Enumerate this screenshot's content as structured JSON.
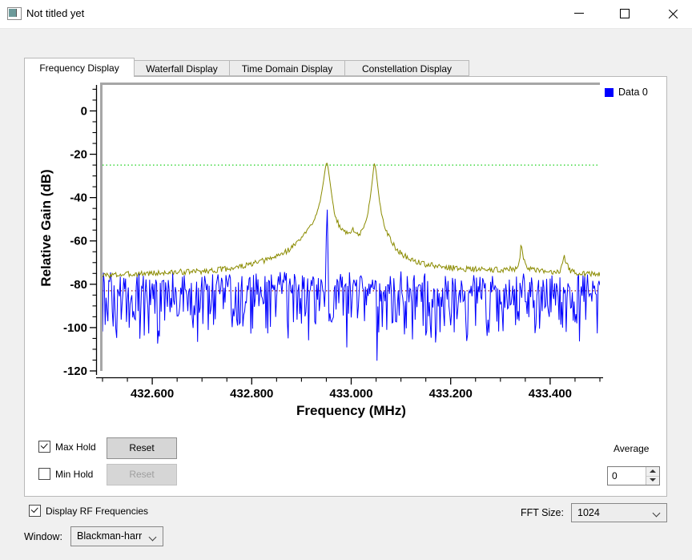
{
  "window": {
    "title": "Not titled yet"
  },
  "tabs": [
    {
      "label": "Frequency Display",
      "selected": true
    },
    {
      "label": "Waterfall Display",
      "selected": false
    },
    {
      "label": "Time Domain Display",
      "selected": false
    },
    {
      "label": "Constellation Display",
      "selected": false
    }
  ],
  "chart_data": {
    "type": "line",
    "title": "",
    "xlabel": "Frequency (MHz)",
    "ylabel": "Relative Gain (dB)",
    "xlim": [
      432.5,
      433.5
    ],
    "ylim": [
      -120,
      12
    ],
    "grid": false,
    "legend_position": "top-right-outside",
    "x_axis": {
      "major": [
        {
          "v": 432.6,
          "label": "432.600"
        },
        {
          "v": 432.8,
          "label": "432.800"
        },
        {
          "v": 433.0,
          "label": "433.000"
        },
        {
          "v": 433.2,
          "label": "433.200"
        },
        {
          "v": 433.4,
          "label": "433.400"
        }
      ],
      "minor": [
        432.5,
        432.55,
        432.65,
        432.7,
        432.75,
        432.85,
        432.9,
        432.95,
        433.05,
        433.1,
        433.15,
        433.25,
        433.3,
        433.35,
        433.45,
        433.5
      ]
    },
    "y_axis": {
      "major": [
        {
          "v": 0,
          "label": "0"
        },
        {
          "v": -20,
          "label": "-20"
        },
        {
          "v": -40,
          "label": "-40"
        },
        {
          "v": -60,
          "label": "-60"
        },
        {
          "v": -80,
          "label": "-80"
        },
        {
          "v": -100,
          "label": "-100"
        },
        {
          "v": -120,
          "label": "-120"
        }
      ],
      "minor": [
        10,
        5,
        -5,
        -10,
        -15,
        -25,
        -30,
        -35,
        -45,
        -50,
        -55,
        -65,
        -70,
        -75,
        -85,
        -90,
        -95,
        -105,
        -110,
        -115
      ]
    },
    "legend": [
      {
        "label": "Data 0",
        "color": "#0000ff"
      }
    ],
    "reference_lines": [
      {
        "name": "trigger-level-line",
        "y": -25,
        "color": "#00cc00",
        "style": "dotted"
      },
      {
        "name": "lower-marker-line",
        "y": -83,
        "color": "#8b0000",
        "style": "dotted"
      }
    ],
    "series": [
      {
        "name": "Data 0",
        "role": "live-spectrum",
        "color": "#0000ff",
        "anchors": [
          [
            432.5,
            -82
          ],
          [
            432.948,
            -82
          ],
          [
            432.9495,
            -55
          ],
          [
            432.951,
            -23.5
          ],
          [
            432.9525,
            -55
          ],
          [
            432.954,
            -82
          ],
          [
            433.5,
            -82
          ]
        ],
        "noise": {
          "seed": 7,
          "up": 8,
          "down": 26,
          "down_pow": 2,
          "dip_prob": 0.05,
          "dip_extra": 9
        }
      },
      {
        "name": "Max Hold",
        "role": "max-hold-trace",
        "color": "#8b8b00",
        "anchors": [
          [
            432.5,
            -76
          ],
          [
            432.54,
            -75.5
          ],
          [
            432.58,
            -75
          ],
          [
            432.62,
            -74.8
          ],
          [
            432.66,
            -74.3
          ],
          [
            432.7,
            -74
          ],
          [
            432.73,
            -73.4
          ],
          [
            432.76,
            -72.5
          ],
          [
            432.79,
            -71.3
          ],
          [
            432.815,
            -69.8
          ],
          [
            432.84,
            -68
          ],
          [
            432.86,
            -66
          ],
          [
            432.875,
            -64
          ],
          [
            432.89,
            -61
          ],
          [
            432.9,
            -58.5
          ],
          [
            432.91,
            -56
          ],
          [
            432.92,
            -52.5
          ],
          [
            432.93,
            -47.5
          ],
          [
            432.938,
            -41
          ],
          [
            432.944,
            -33
          ],
          [
            432.948,
            -26.5
          ],
          [
            432.951,
            -23.2
          ],
          [
            432.954,
            -27
          ],
          [
            432.958,
            -34
          ],
          [
            432.963,
            -43
          ],
          [
            432.969,
            -49.5
          ],
          [
            432.976,
            -53
          ],
          [
            432.985,
            -55.5
          ],
          [
            432.993,
            -56.8
          ],
          [
            433.0,
            -55.2
          ],
          [
            433.003,
            -54.5
          ],
          [
            433.007,
            -55.8
          ],
          [
            433.013,
            -57
          ],
          [
            433.02,
            -56.2
          ],
          [
            433.026,
            -53.5
          ],
          [
            433.032,
            -48.5
          ],
          [
            433.038,
            -41
          ],
          [
            433.043,
            -31
          ],
          [
            433.0455,
            -25.5
          ],
          [
            433.047,
            -23.6
          ],
          [
            433.05,
            -28
          ],
          [
            433.054,
            -36
          ],
          [
            433.059,
            -45
          ],
          [
            433.065,
            -51
          ],
          [
            433.072,
            -56
          ],
          [
            433.08,
            -60
          ],
          [
            433.09,
            -63.5
          ],
          [
            433.1,
            -65.8
          ],
          [
            433.115,
            -68
          ],
          [
            433.13,
            -69.5
          ],
          [
            433.15,
            -70.8
          ],
          [
            433.175,
            -71.8
          ],
          [
            433.2,
            -72.4
          ],
          [
            433.24,
            -73
          ],
          [
            433.28,
            -73.4
          ],
          [
            433.31,
            -73.2
          ],
          [
            433.33,
            -72.8
          ],
          [
            433.338,
            -69.5
          ],
          [
            433.342,
            -61.5
          ],
          [
            433.347,
            -68.5
          ],
          [
            433.355,
            -72.5
          ],
          [
            433.37,
            -73.8
          ],
          [
            433.39,
            -74.2
          ],
          [
            433.41,
            -74.5
          ],
          [
            433.42,
            -73.5
          ],
          [
            433.425,
            -69.5
          ],
          [
            433.4285,
            -66.5
          ],
          [
            433.432,
            -70
          ],
          [
            433.44,
            -73.8
          ],
          [
            433.46,
            -74.8
          ],
          [
            433.48,
            -75.2
          ],
          [
            433.5,
            -75.5
          ]
        ],
        "noise": {
          "seed": 3,
          "jitter": 1.3
        }
      }
    ]
  },
  "controls": {
    "max_hold": {
      "label": "Max Hold",
      "checked": true,
      "reset_label": "Reset",
      "reset_enabled": true
    },
    "min_hold": {
      "label": "Min Hold",
      "checked": false,
      "reset_label": "Reset",
      "reset_enabled": false
    },
    "average": {
      "label": "Average",
      "value": "0"
    }
  },
  "footer": {
    "display_rf": {
      "label": "Display RF Frequencies",
      "checked": true
    },
    "fft_size": {
      "label": "FFT Size:",
      "value": "1024"
    },
    "window_fn": {
      "label": "Window:",
      "value": "Blackman-harr"
    }
  }
}
